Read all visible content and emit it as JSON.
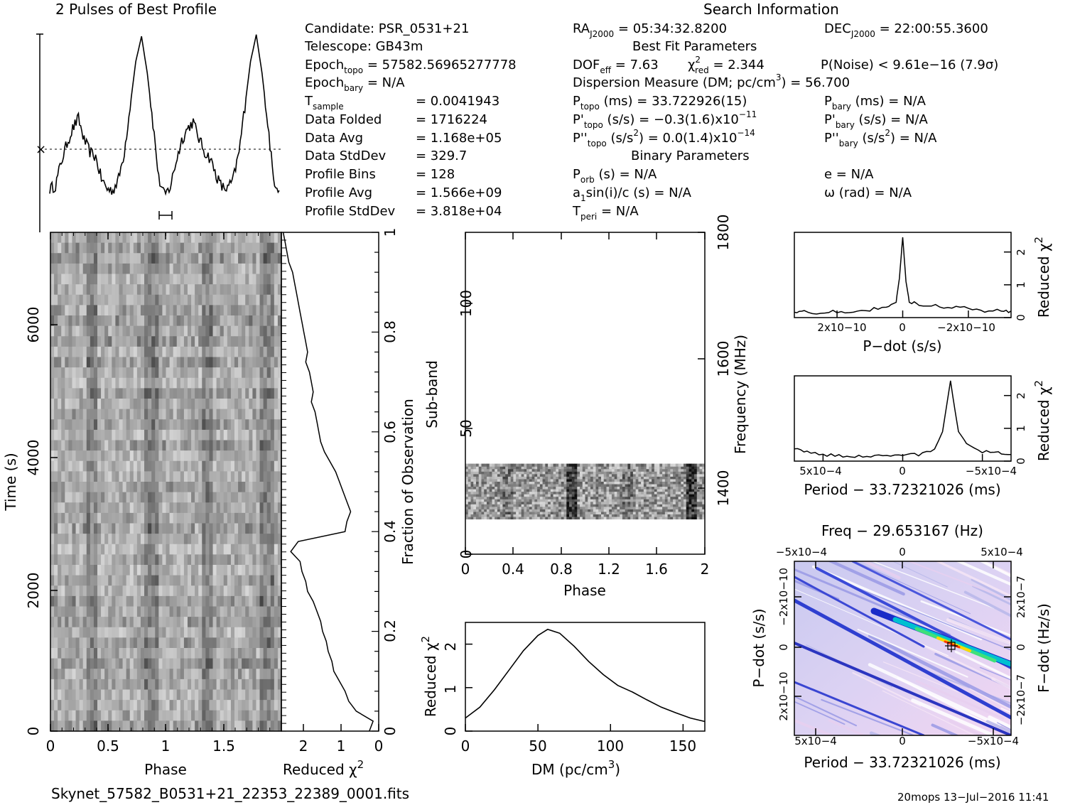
{
  "header": {
    "profile_title": "2 Pulses of Best Profile",
    "search_title": "Search Information",
    "best_fit_title": "Best Fit Parameters",
    "binary_title": "Binary Parameters"
  },
  "info": {
    "candidate": "Candidate:  PSR_0531+21",
    "telescope": "Telescope:  GB43m",
    "epoch_topo_label": "Epoch",
    "epoch_topo_sub": "topo",
    "epoch_topo_val": " = 57582.56965277778",
    "epoch_bary_label": "Epoch",
    "epoch_bary_sub": "bary",
    "epoch_bary_val": " = N/A",
    "t_sample_label": "T",
    "t_sample_sub": "sample",
    "t_sample_val": "=   0.0041943",
    "data_folded_label": "Data Folded",
    "data_folded_val": "=   1716224",
    "data_avg_label": "Data Avg",
    "data_avg_val": "=   1.168e+05",
    "data_std_label": "Data StdDev",
    "data_std_val": "=   329.7",
    "profile_bins_label": "Profile Bins",
    "profile_bins_val": "=   128",
    "profile_avg_label": "Profile Avg",
    "profile_avg_val": "=   1.566e+09",
    "profile_std_label": "Profile StdDev",
    "profile_std_val": "=   3.818e+04",
    "ra": "RA",
    "ra_sub": "J2000",
    "ra_val": " = 05:34:32.8200",
    "dec": "DEC",
    "dec_sub": "J2000",
    "dec_val": " = 22:00:55.3600",
    "dof": "DOF",
    "dof_sub": "eff",
    "dof_val": " = 7.63",
    "chi_label": "χ",
    "chi_sup": "2",
    "chi_sub": "red",
    "chi_val": " = 2.344",
    "pnoise": "P(Noise) < 9.61e−16  (7.9σ)",
    "dm_line_a": "Dispersion Measure (DM; pc/cm",
    "dm_line_sup": "3",
    "dm_line_b": ") = 56.700",
    "ptopo_label": "P",
    "ptopo_sub": "topo",
    "ptopo_val": " (ms) =  33.722926(15)",
    "pbary_label": "P",
    "pbary_sub": "bary",
    "pbary_val": " (ms) = N/A",
    "pdtopo_label": "P'",
    "pdtopo_sub": "topo",
    "pdtopo_val": " (s/s) = −0.3(1.6)x10",
    "pdtopo_exp": "−11",
    "pdbary_label": "P'",
    "pdbary_sub": "bary",
    "pdbary_val": " (s/s) = N/A",
    "pddtopo_label": "P''",
    "pddtopo_sub": "topo",
    "pddtopo_val_a": " (s/s",
    "pddtopo_val_sup": "2",
    "pddtopo_val_b": ") = 0.0(1.4)x10",
    "pddtopo_exp": "−14",
    "pddbary_label": "P''",
    "pddbary_sub": "bary",
    "pddbary_val_a": " (s/s",
    "pddbary_val_sup": "2",
    "pddbary_val_b": ") = N/A",
    "porb_label": "P",
    "porb_sub": "orb",
    "porb_val": " (s) = N/A",
    "ecc": "e = N/A",
    "asini_a": "a",
    "asini_sub": "1",
    "asini_b": "sin(i)/c (s) = N/A",
    "omega": "ω (rad) = N/A",
    "tperi_label": "T",
    "tperi_sub": "peri",
    "tperi_val": " = N/A"
  },
  "footer": {
    "filename": "Skynet_57582_B0531+21_22353_22389_0001.fits",
    "stamp": "20mops 13−Jul−2016 11:41"
  },
  "chart_data": [
    {
      "type": "line",
      "title": "2 Pulses of Best Profile",
      "description_note": "Folded pulse profile shown twice (phase 0–2)",
      "x": [
        0.0,
        0.05,
        0.1,
        0.15,
        0.2,
        0.25,
        0.3,
        0.35,
        0.4,
        0.45,
        0.5,
        0.55,
        0.6,
        0.65,
        0.7,
        0.75,
        0.8,
        0.85,
        0.9,
        0.95,
        1.0,
        1.05,
        1.1,
        1.15,
        1.2,
        1.25,
        1.3,
        1.35,
        1.4,
        1.45,
        1.5,
        1.55,
        1.6,
        1.65,
        1.7,
        1.75,
        1.8,
        1.85,
        1.9,
        1.95,
        2.0
      ],
      "y": [
        0.06,
        0.08,
        0.22,
        0.33,
        0.42,
        0.48,
        0.35,
        0.28,
        0.25,
        0.12,
        0.06,
        0.05,
        0.12,
        0.28,
        0.55,
        0.82,
        0.97,
        0.75,
        0.45,
        0.12,
        0.02,
        0.07,
        0.22,
        0.35,
        0.42,
        0.46,
        0.36,
        0.28,
        0.24,
        0.14,
        0.07,
        0.06,
        0.12,
        0.28,
        0.55,
        0.82,
        0.98,
        0.75,
        0.45,
        0.12,
        0.05
      ]
    },
    {
      "type": "heatmap",
      "xlabel": "Phase",
      "ylabel": "Time (s)",
      "x_ticks": [
        "0",
        "0.5",
        "1",
        "1.5"
      ],
      "y_ticks": [
        "0",
        "2000",
        "4000",
        "6000"
      ],
      "xlim": [
        0,
        2
      ],
      "ylim": [
        0,
        6900
      ]
    },
    {
      "type": "line",
      "xlabel": "Reduced χ2",
      "ylabel_right": "Fraction of Observation",
      "x_ticks": [
        "2",
        "1",
        "0"
      ],
      "y_ticks": [
        "0",
        "0.2",
        "0.4",
        "0.6",
        "0.8",
        "1"
      ],
      "fraction": [
        0.0,
        0.02,
        0.04,
        0.06,
        0.08,
        0.1,
        0.12,
        0.14,
        0.16,
        0.18,
        0.2,
        0.22,
        0.24,
        0.26,
        0.28,
        0.3,
        0.32,
        0.34,
        0.36,
        0.38,
        0.4,
        0.42,
        0.44,
        0.46,
        0.48,
        0.5,
        0.52,
        0.54,
        0.56,
        0.58,
        0.6,
        0.62,
        0.64,
        0.66,
        0.68,
        0.7,
        0.72,
        0.74,
        0.76,
        0.78,
        0.8,
        0.82,
        0.84,
        0.86,
        0.88,
        0.9,
        0.92,
        0.94,
        0.96,
        0.98,
        1.0
      ],
      "redchi": [
        0.25,
        0.15,
        0.6,
        0.8,
        0.9,
        1.05,
        1.2,
        1.25,
        1.35,
        1.4,
        1.5,
        1.55,
        1.65,
        1.75,
        1.9,
        1.95,
        2.05,
        2.1,
        2.35,
        2.15,
        0.9,
        0.85,
        0.75,
        0.85,
        0.95,
        1.05,
        1.15,
        1.3,
        1.45,
        1.55,
        1.6,
        1.65,
        1.7,
        1.8,
        1.75,
        1.8,
        1.85,
        1.95,
        1.9,
        1.95,
        2.0,
        2.05,
        2.1,
        2.15,
        2.2,
        2.25,
        2.3,
        2.4,
        2.45,
        2.5,
        2.55
      ]
    },
    {
      "type": "heatmap",
      "xlabel": "Phase",
      "ylabel": "Sub-band",
      "ylabel_right": "Frequency (MHz)",
      "x_ticks": [
        "0",
        "0.4",
        "0.8",
        "1.2",
        "1.6",
        "2"
      ],
      "y_ticks": [
        "0",
        "50",
        "100"
      ],
      "y_ticks_right": [
        "1400",
        "1600",
        "1800"
      ],
      "xlim": [
        0,
        2
      ],
      "ylim": [
        0,
        128
      ],
      "occupied_subbands": [
        14,
        35
      ]
    },
    {
      "type": "line",
      "xlabel": "DM (pc/cm3)",
      "ylabel": "Reduced χ2",
      "x_ticks": [
        "0",
        "50",
        "100",
        "150"
      ],
      "y_ticks": [
        "0",
        "1",
        "2"
      ],
      "x": [
        0,
        10,
        20,
        30,
        40,
        50,
        56.7,
        65,
        75,
        85,
        95,
        105,
        115,
        125,
        135,
        145,
        155,
        165
      ],
      "y": [
        0.3,
        0.55,
        0.95,
        1.4,
        1.85,
        2.2,
        2.34,
        2.25,
        1.95,
        1.6,
        1.3,
        1.05,
        0.9,
        0.72,
        0.55,
        0.42,
        0.3,
        0.22
      ],
      "xlim": [
        0,
        165
      ],
      "ylim": [
        0,
        2.5
      ]
    },
    {
      "type": "line",
      "xlabel": "P−dot (s/s)",
      "ylabel_right": "Reduced χ2",
      "x_ticks": [
        "2x10−10",
        "0",
        "−2x10−10"
      ],
      "y_ticks": [
        "0",
        "1",
        "2"
      ],
      "x": [
        3.3e-10,
        3e-10,
        2.5e-10,
        2e-10,
        1.5e-10,
        1e-10,
        5e-11,
        2e-11,
        1e-11,
        0,
        -1e-11,
        -2e-11,
        -5e-11,
        -1e-10,
        -1.5e-10,
        -2e-10,
        -2.5e-10,
        -3e-10,
        -3.3e-10
      ],
      "y": [
        0.15,
        0.18,
        0.15,
        0.2,
        0.2,
        0.25,
        0.3,
        0.5,
        1.2,
        2.45,
        1.1,
        0.5,
        0.4,
        0.35,
        0.3,
        0.3,
        0.2,
        0.25,
        0.2
      ],
      "ylim": [
        0,
        2.6
      ]
    },
    {
      "type": "line",
      "xlabel": "Period − 33.72321026 (ms)",
      "ylabel_right": "Reduced χ2",
      "x_ticks": [
        "5x10−4",
        "0",
        "−5x10−4"
      ],
      "y_ticks": [
        "0",
        "1",
        "2"
      ],
      "x": [
        0.00068,
        0.0006,
        0.0005,
        0.0004,
        0.0003,
        0.0002,
        0.0001,
        0,
        -0.0001,
        -0.0002,
        -0.00025,
        -0.0003,
        -0.00032,
        -0.00035,
        -0.0004,
        -0.0005,
        -0.0006,
        -0.00068
      ],
      "y": [
        0.35,
        0.3,
        0.2,
        0.15,
        0.15,
        0.15,
        0.15,
        0.2,
        0.2,
        0.35,
        0.9,
        2.45,
        1.8,
        0.9,
        0.55,
        0.3,
        0.25,
        0.2
      ],
      "ylim": [
        0,
        2.6
      ]
    },
    {
      "type": "heatmap",
      "title": "Freq − 29.653167 (Hz)",
      "xlabel": "Period − 33.72321026 (ms)",
      "ylabel": "P−dot (s/s)",
      "ylabel_right": "F−dot (Hz/s)",
      "x_ticks": [
        "5x10−4",
        "0",
        "−5x10−4"
      ],
      "x_ticks_top": [
        "−5x10−4",
        "0",
        "5x10−4"
      ],
      "y_ticks": [
        "2x10−10",
        "0",
        "−2x10−10"
      ],
      "y_ticks_right": [
        "−2x10−7",
        "0",
        "2x10−7"
      ]
    }
  ]
}
